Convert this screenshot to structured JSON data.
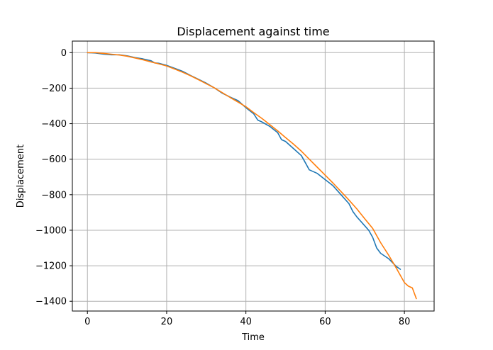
{
  "chart_data": {
    "type": "line",
    "title": "Displacement against time",
    "xlabel": "Time",
    "ylabel": "Displacement",
    "xlim": [
      -3.8,
      87.5
    ],
    "ylim": [
      -1455,
      65
    ],
    "xticks": [
      0,
      20,
      40,
      60,
      80
    ],
    "yticks": [
      0,
      -200,
      -400,
      -600,
      -800,
      -1000,
      -1200,
      -1400
    ],
    "grid": true,
    "colors": [
      "#1f77b4",
      "#ff7f0e"
    ],
    "series": [
      {
        "x": [
          0,
          2,
          4,
          6,
          8,
          10,
          12,
          14,
          16,
          17,
          18,
          20,
          22,
          24,
          26,
          28,
          30,
          32,
          34,
          36,
          38,
          40,
          42,
          43,
          44,
          46,
          48,
          49,
          50,
          52,
          54,
          55,
          56,
          58,
          60,
          62,
          64,
          66,
          67,
          68,
          70,
          71,
          72,
          73,
          74,
          76,
          78,
          79
        ],
        "values": [
          0,
          -2,
          -8,
          -12,
          -12,
          -18,
          -28,
          -35,
          -45,
          -58,
          -60,
          -72,
          -88,
          -105,
          -128,
          -150,
          -172,
          -198,
          -228,
          -250,
          -270,
          -310,
          -345,
          -380,
          -390,
          -415,
          -450,
          -490,
          -500,
          -540,
          -580,
          -620,
          -660,
          -680,
          -715,
          -750,
          -800,
          -850,
          -895,
          -925,
          -975,
          -1000,
          -1040,
          -1100,
          -1130,
          -1160,
          -1205,
          -1220
        ]
      },
      {
        "x": [
          0,
          2,
          4,
          6,
          8,
          10,
          12,
          14,
          16,
          18,
          20,
          22,
          24,
          26,
          28,
          30,
          32,
          34,
          36,
          38,
          40,
          42,
          44,
          46,
          48,
          50,
          52,
          54,
          56,
          58,
          60,
          62,
          64,
          66,
          68,
          70,
          72,
          73,
          74,
          76,
          78,
          80,
          81,
          82,
          83
        ],
        "values": [
          0,
          0,
          -4,
          -9,
          -13,
          -20,
          -30,
          -40,
          -52,
          -63,
          -75,
          -92,
          -110,
          -130,
          -152,
          -175,
          -198,
          -225,
          -252,
          -278,
          -305,
          -338,
          -370,
          -405,
          -440,
          -478,
          -515,
          -555,
          -600,
          -645,
          -690,
          -735,
          -782,
          -830,
          -880,
          -935,
          -990,
          -1030,
          -1070,
          -1140,
          -1215,
          -1295,
          -1315,
          -1325,
          -1385
        ]
      }
    ]
  }
}
